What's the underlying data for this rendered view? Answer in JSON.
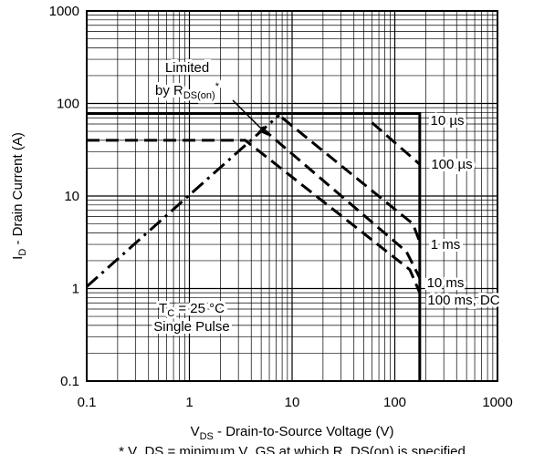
{
  "chart_data": {
    "type": "line",
    "x_scale": "log",
    "y_scale": "log",
    "xlim": [
      0.1,
      1000
    ],
    "ylim": [
      0.1,
      1000
    ],
    "xticks": [
      0.1,
      1,
      10,
      100,
      1000
    ],
    "yticks": [
      0.1,
      1,
      10,
      100,
      1000
    ],
    "grid": true,
    "x_label": {
      "main": "V",
      "sub": "DS",
      "rest": " - Drain-to-Source Voltage (V)"
    },
    "y_label": {
      "main": "I",
      "sub": "D",
      "rest": " - Drain Current (A)"
    },
    "annotations": {
      "limited": {
        "line1": "Limited",
        "main": "by R",
        "sub": "DS(on)",
        "sup": "*"
      },
      "conditions": {
        "main": "T",
        "sub": "C",
        "rest": " = 25 °C",
        "line2": "Single Pulse"
      },
      "footnote": "* V_DS = minimum V_GS at which R_DS(on) is specified"
    },
    "series": [
      {
        "name": "10 µs",
        "color": "#000000",
        "dash": "solid",
        "x": [
          0.1,
          175,
          175
        ],
        "values": [
          78,
          78,
          0.1
        ]
      },
      {
        "name": "100 µs",
        "color": "#000000",
        "dash": "dashed",
        "x": [
          60,
          175
        ],
        "values": [
          62,
          22
        ]
      },
      {
        "name": "1 ms",
        "color": "#000000",
        "dash": "dashed",
        "x": [
          8,
          150,
          175
        ],
        "values": [
          70,
          5,
          3.2
        ]
      },
      {
        "name": "10 ms",
        "color": "#000000",
        "dash": "dashed",
        "x": [
          5,
          130,
          175
        ],
        "values": [
          55,
          2.5,
          1.3
        ]
      },
      {
        "name": "100 ms, DC",
        "color": "#000000",
        "dash": "dashed",
        "x": [
          0.1,
          3.5,
          140,
          175
        ],
        "values": [
          40,
          40,
          1.6,
          0.9
        ]
      },
      {
        "color": "#000000",
        "dash": "dashdot",
        "x": [
          0.1,
          7.5
        ],
        "values": [
          1.05,
          75
        ]
      }
    ]
  }
}
